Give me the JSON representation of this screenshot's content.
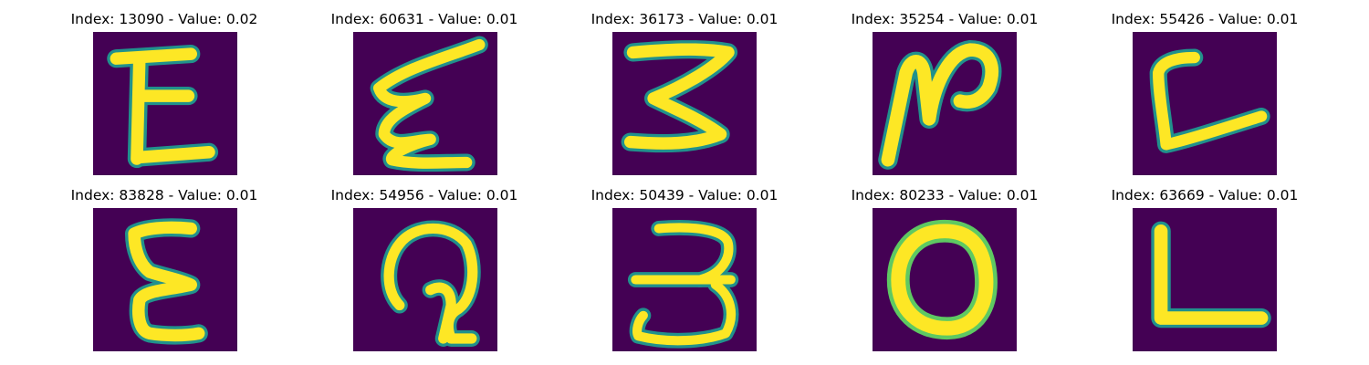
{
  "figure": {
    "colormap": "viridis",
    "colors": {
      "background": "#440154",
      "stroke_core": "#fde725",
      "stroke_edge": "#21918c",
      "stroke_mid": "#5ec962"
    },
    "panels": [
      {
        "title": "Index: 13090 - Value: 0.02",
        "glyph": "E"
      },
      {
        "title": "Index: 60631 - Value: 0.01",
        "glyph": "E"
      },
      {
        "title": "Index: 36173 - Value: 0.01",
        "glyph": "3"
      },
      {
        "title": "Index: 35254 - Value: 0.01",
        "glyph": "N"
      },
      {
        "title": "Index: 55426 - Value: 0.01",
        "glyph": "L"
      },
      {
        "title": "Index: 83828 - Value: 0.01",
        "glyph": "E"
      },
      {
        "title": "Index: 54956 - Value: 0.01",
        "glyph": "G"
      },
      {
        "title": "Index: 50439 - Value: 0.01",
        "glyph": "3"
      },
      {
        "title": "Index: 80233 - Value: 0.01",
        "glyph": "O"
      },
      {
        "title": "Index: 63669 - Value: 0.01",
        "glyph": "L"
      }
    ]
  }
}
